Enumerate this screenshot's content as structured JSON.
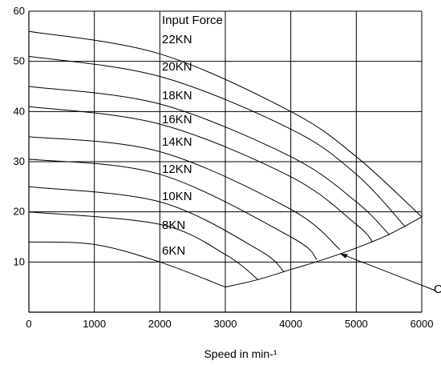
{
  "chart_data": {
    "type": "line",
    "title": "",
    "xlabel": "Speed in min-¹",
    "ylabel": "",
    "xlim": [
      0,
      6000
    ],
    "ylim": [
      0,
      60
    ],
    "x_ticks": [
      0,
      1000,
      2000,
      3000,
      4000,
      5000,
      6000
    ],
    "y_ticks": [
      10,
      20,
      30,
      40,
      50,
      60
    ],
    "x_tick_labels": [
      "0",
      "1000",
      "2000",
      "3000",
      "4000",
      "5000",
      "6000"
    ],
    "y_tick_labels": [
      "10",
      "20",
      "30",
      "40",
      "50",
      "60"
    ],
    "grid": true,
    "legend_title": "Input Force",
    "series": [
      {
        "name": "22KN",
        "x": [
          0,
          2000,
          4000,
          5000,
          6000
        ],
        "y": [
          56,
          51.5,
          40,
          31,
          19
        ]
      },
      {
        "name": "20KN",
        "x": [
          0,
          2000,
          4000,
          5000,
          5750
        ],
        "y": [
          51,
          47,
          36.5,
          27.5,
          17
        ]
      },
      {
        "name": "18KN",
        "x": [
          0,
          2000,
          4000,
          5000,
          5500
        ],
        "y": [
          45,
          41.5,
          31,
          22,
          15.5
        ]
      },
      {
        "name": "16KN",
        "x": [
          0,
          2000,
          4000,
          5000,
          5250
        ],
        "y": [
          41,
          37.5,
          27,
          17.5,
          14
        ]
      },
      {
        "name": "14KN",
        "x": [
          0,
          2000,
          4000,
          4750
        ],
        "y": [
          35,
          32,
          20.5,
          12.5
        ]
      },
      {
        "name": "12KN",
        "x": [
          0,
          2000,
          4000,
          4400
        ],
        "y": [
          30.5,
          27.5,
          15,
          10.5
        ]
      },
      {
        "name": "10KN",
        "x": [
          0,
          2000,
          3500,
          3900
        ],
        "y": [
          25,
          22,
          12.5,
          8
        ]
      },
      {
        "name": "8KN",
        "x": [
          0,
          2000,
          3000,
          3500
        ],
        "y": [
          20,
          17.5,
          11.5,
          6.5
        ]
      },
      {
        "name": "6KN",
        "x": [
          0,
          1000,
          2000,
          3000
        ],
        "y": [
          14,
          13.5,
          10,
          5
        ]
      },
      {
        "name": "",
        "x": [
          3000,
          3500,
          4000,
          4500,
          5000,
          5500,
          6000
        ],
        "y": [
          5,
          6.5,
          8.5,
          10.5,
          12.8,
          15.5,
          19
        ]
      }
    ],
    "annotations": [
      {
        "text": "Input Force"
      },
      {
        "text": "22KN"
      },
      {
        "text": "20KN"
      },
      {
        "text": "18KN"
      },
      {
        "text": "16KN"
      },
      {
        "text": "14KN"
      },
      {
        "text": "12KN"
      },
      {
        "text": "10KN"
      },
      {
        "text": "8KN"
      },
      {
        "text": "6KN"
      },
      {
        "text": "C"
      }
    ]
  }
}
